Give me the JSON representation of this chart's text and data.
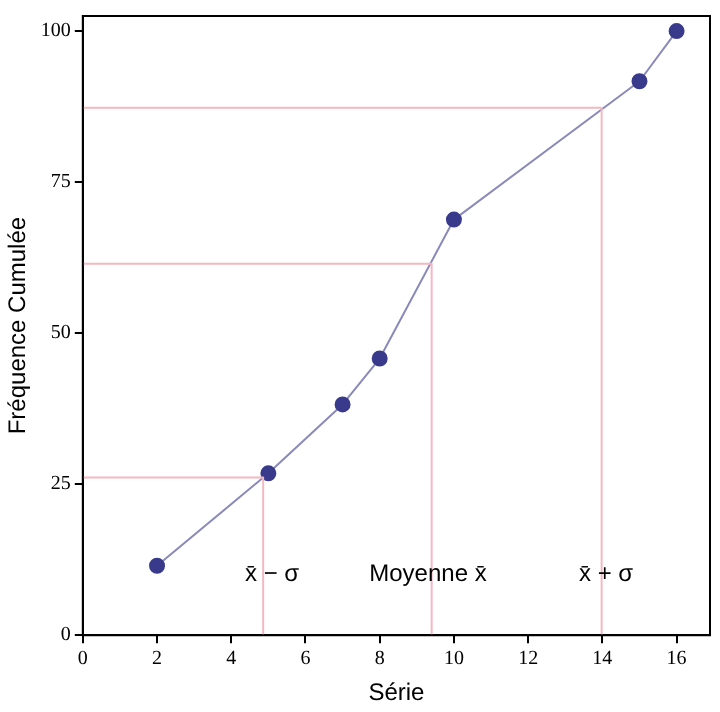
{
  "chart_data": {
    "type": "line",
    "xlabel": "Série",
    "ylabel": "Fréquence Cumulée",
    "xlim": [
      0,
      16.9
    ],
    "ylim": [
      0,
      102.5
    ],
    "xticks": [
      0,
      2,
      4,
      6,
      8,
      10,
      12,
      14,
      16
    ],
    "yticks": [
      0,
      25,
      50,
      75,
      100
    ],
    "grid": false,
    "legend": false,
    "marker": "circle",
    "series": [
      {
        "color": "#3a3a8c",
        "x": [
          2,
          5,
          7,
          8,
          10,
          15,
          16
        ],
        "values": [
          11.5,
          26.8,
          38.2,
          45.8,
          68.8,
          91.7,
          100
        ]
      },
      {
        "type": "line",
        "marker": "none",
        "color": "#f4b8c0",
        "x": [
          0,
          4.86,
          4.86
        ],
        "values": [
          26.1,
          26.1,
          0
        ]
      },
      {
        "type": "line",
        "marker": "none",
        "color": "#f4b8c0",
        "x": [
          0,
          9.4,
          9.4
        ],
        "values": [
          61.5,
          61.5,
          0
        ]
      },
      {
        "type": "line",
        "marker": "none",
        "color": "#f4b8c0",
        "x": [
          0,
          13.98,
          13.98
        ],
        "values": [
          87.3,
          87.3,
          0
        ]
      }
    ],
    "annotations": [
      {
        "text": "x̄ − σ",
        "x": 5.1,
        "y": 10
      },
      {
        "text": "Moyenne x̄",
        "x": 9.3,
        "y": 10
      },
      {
        "text": "x̄ + σ",
        "x": 14.1,
        "y": 10
      }
    ]
  }
}
